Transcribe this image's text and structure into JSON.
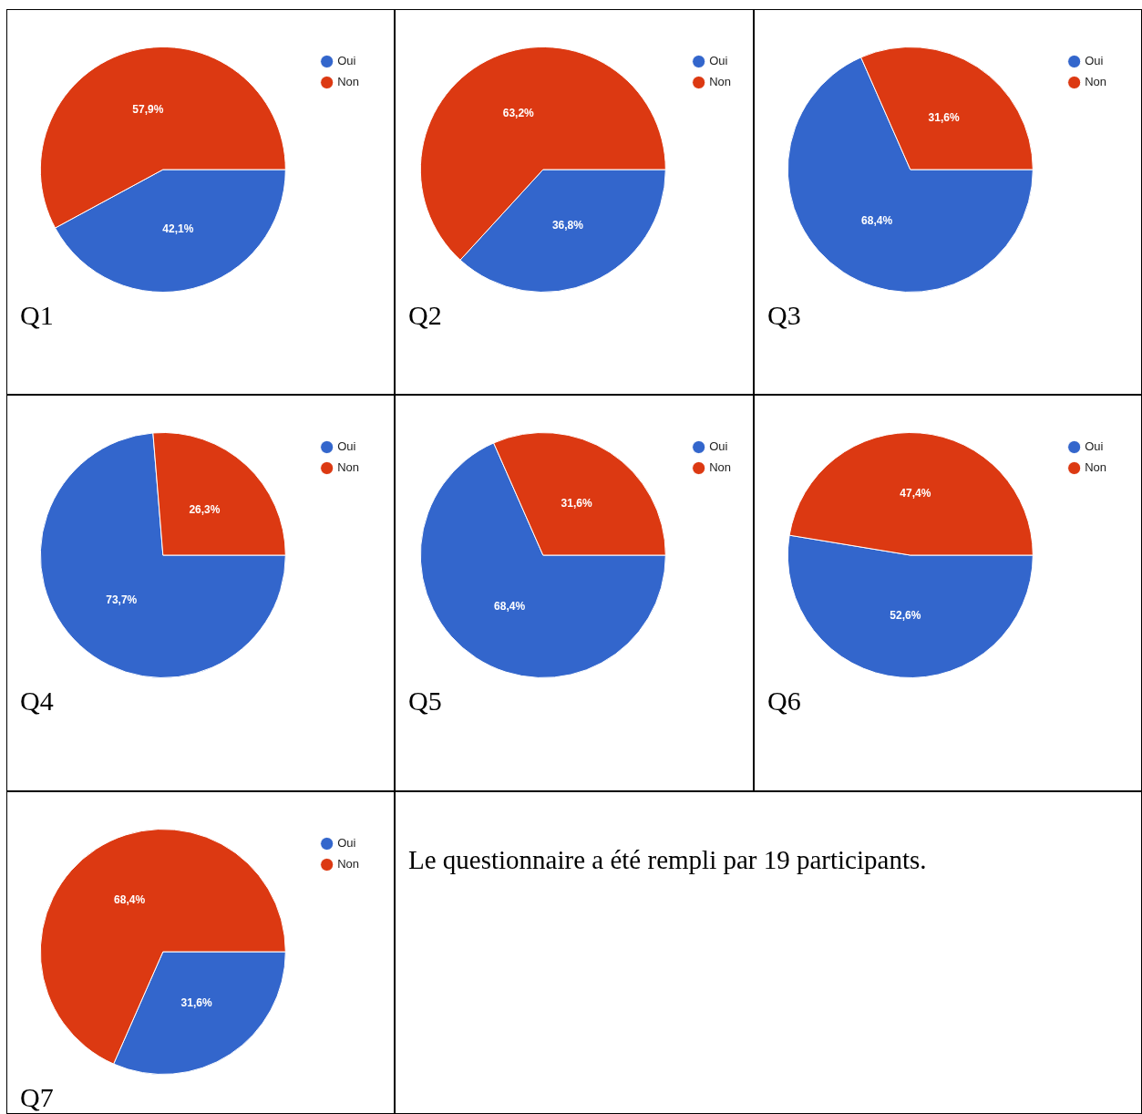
{
  "chart_data": [
    {
      "type": "pie",
      "title": "Q1",
      "categories": [
        "Oui",
        "Non"
      ],
      "values": [
        42.1,
        57.9
      ],
      "colors": [
        "#3366cc",
        "#dc3912"
      ],
      "value_labels": [
        "42,1%",
        "57,9%"
      ],
      "legend": "right"
    },
    {
      "type": "pie",
      "title": "Q2",
      "categories": [
        "Oui",
        "Non"
      ],
      "values": [
        36.8,
        63.2
      ],
      "colors": [
        "#3366cc",
        "#dc3912"
      ],
      "value_labels": [
        "36,8%",
        "63,2%"
      ],
      "legend": "right"
    },
    {
      "type": "pie",
      "title": "Q3",
      "categories": [
        "Oui",
        "Non"
      ],
      "values": [
        68.4,
        31.6
      ],
      "colors": [
        "#3366cc",
        "#dc3912"
      ],
      "value_labels": [
        "68,4%",
        "31,6%"
      ],
      "legend": "right"
    },
    {
      "type": "pie",
      "title": "Q4",
      "categories": [
        "Oui",
        "Non"
      ],
      "values": [
        73.7,
        26.3
      ],
      "colors": [
        "#3366cc",
        "#dc3912"
      ],
      "value_labels": [
        "73,7%",
        "26,3%"
      ],
      "legend": "right"
    },
    {
      "type": "pie",
      "title": "Q5",
      "categories": [
        "Oui",
        "Non"
      ],
      "values": [
        68.4,
        31.6
      ],
      "colors": [
        "#3366cc",
        "#dc3912"
      ],
      "value_labels": [
        "68,4%",
        "31,6%"
      ],
      "legend": "right"
    },
    {
      "type": "pie",
      "title": "Q6",
      "categories": [
        "Oui",
        "Non"
      ],
      "values": [
        52.6,
        47.4
      ],
      "colors": [
        "#3366cc",
        "#dc3912"
      ],
      "value_labels": [
        "52,6%",
        "47,4%"
      ],
      "legend": "right"
    },
    {
      "type": "pie",
      "title": "Q7",
      "categories": [
        "Oui",
        "Non"
      ],
      "values": [
        31.6,
        68.4
      ],
      "colors": [
        "#3366cc",
        "#dc3912"
      ],
      "value_labels": [
        "31,6%",
        "68,4%"
      ],
      "legend": "right"
    },
    {
      "type": "other",
      "annotations": [
        "Le questionnaire a été rempli par 19 participants."
      ]
    }
  ]
}
